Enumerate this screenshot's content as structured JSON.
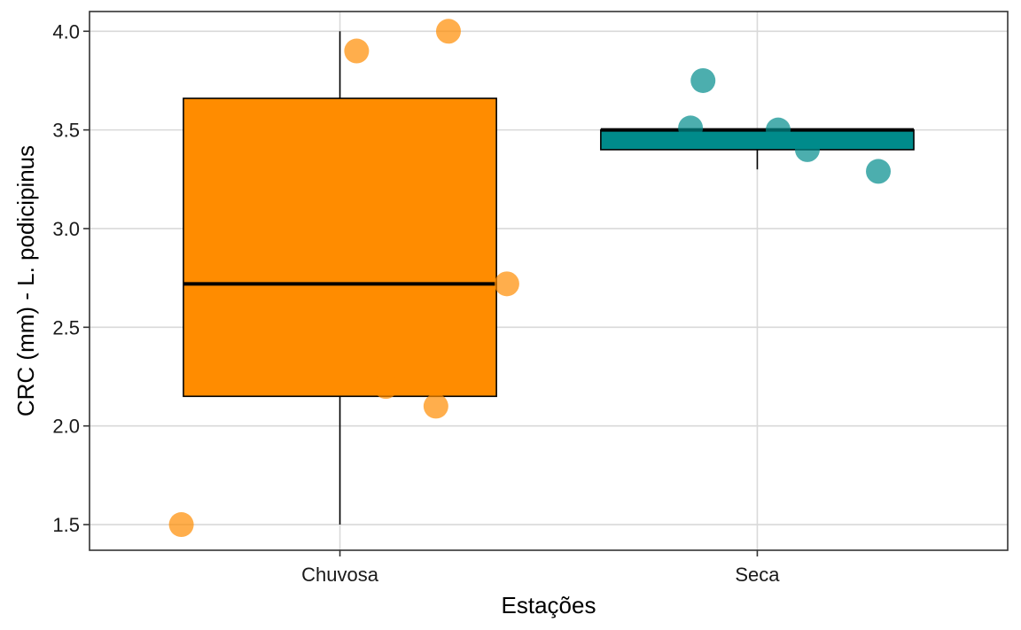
{
  "chart_data": {
    "type": "box",
    "title": "",
    "xlabel": "Estações",
    "ylabel": "CRC (mm) - L. podicipinus",
    "ylim": [
      1.37,
      4.1
    ],
    "yticks": [
      1.5,
      2.0,
      2.5,
      3.0,
      3.5,
      4.0
    ],
    "ytick_labels": [
      "1.5",
      "2.0",
      "2.5",
      "3.0",
      "3.5",
      "4.0"
    ],
    "grid": true,
    "legend": "none",
    "categories": [
      "Chuvosa",
      "Seca"
    ],
    "boxes": [
      {
        "category": "Chuvosa",
        "whisker_low": 1.5,
        "q1": 2.15,
        "median": 2.72,
        "q3": 3.66,
        "whisker_high": 4.0,
        "fill": "#FF8C00",
        "points": [
          {
            "jitter": -0.38,
            "y": 1.5
          },
          {
            "jitter": 0.11,
            "y": 2.2
          },
          {
            "jitter": 0.23,
            "y": 2.1
          },
          {
            "jitter": 0.4,
            "y": 2.72
          },
          {
            "jitter": 0.04,
            "y": 3.9
          },
          {
            "jitter": 0.26,
            "y": 4.0
          }
        ]
      },
      {
        "category": "Seca",
        "whisker_low": 3.3,
        "q1": 3.4,
        "median": 3.5,
        "q3": 3.5,
        "whisker_high": 3.5,
        "fill": "#008B8B",
        "points": [
          {
            "jitter": -0.13,
            "y": 3.75
          },
          {
            "jitter": -0.16,
            "y": 3.51
          },
          {
            "jitter": 0.05,
            "y": 3.5
          },
          {
            "jitter": 0.12,
            "y": 3.4
          },
          {
            "jitter": 0.29,
            "y": 3.29
          }
        ]
      }
    ]
  }
}
